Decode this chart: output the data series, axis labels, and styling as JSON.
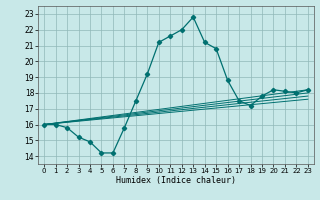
{
  "title": "",
  "xlabel": "Humidex (Indice chaleur)",
  "xlim": [
    -0.5,
    23.5
  ],
  "ylim": [
    13.5,
    23.5
  ],
  "yticks": [
    14,
    15,
    16,
    17,
    18,
    19,
    20,
    21,
    22,
    23
  ],
  "xticks": [
    0,
    1,
    2,
    3,
    4,
    5,
    6,
    7,
    8,
    9,
    10,
    11,
    12,
    13,
    14,
    15,
    16,
    17,
    18,
    19,
    20,
    21,
    22,
    23
  ],
  "bg_color": "#c8e8e8",
  "grid_color": "#90b8b8",
  "line_color": "#007070",
  "line_main": {
    "x": [
      0,
      1,
      2,
      3,
      4,
      5,
      6,
      7,
      8,
      9,
      10,
      11,
      12,
      13,
      14,
      15,
      16,
      17,
      18,
      19,
      20,
      21,
      22,
      23
    ],
    "y": [
      16.0,
      16.0,
      15.8,
      15.2,
      14.9,
      14.2,
      14.2,
      15.8,
      17.5,
      19.2,
      21.2,
      21.6,
      22.0,
      22.8,
      21.2,
      20.8,
      18.8,
      17.5,
      17.2,
      17.8,
      18.2,
      18.1,
      18.0,
      18.2
    ]
  },
  "lines_secondary": [
    {
      "x": [
        0,
        23
      ],
      "y": [
        16.0,
        18.2
      ]
    },
    {
      "x": [
        0,
        23
      ],
      "y": [
        16.0,
        18.2
      ]
    },
    {
      "x": [
        0,
        23
      ],
      "y": [
        16.0,
        18.2
      ]
    },
    {
      "x": [
        0,
        23
      ],
      "y": [
        16.0,
        18.2
      ]
    }
  ]
}
